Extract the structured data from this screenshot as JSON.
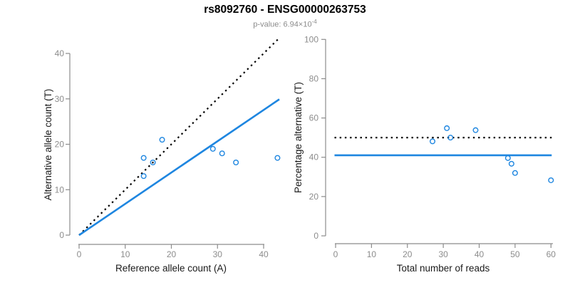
{
  "header": {
    "title": "rs8092760 - ENSG00000263753",
    "subtitle_base": "p-value: 6.94×10",
    "subtitle_exponent": "-4"
  },
  "colors": {
    "accent_blue": "#1e86e0",
    "dotted_black": "#000000",
    "axis_gray": "#8c8c8c",
    "label_black": "#1a1a1a",
    "marker_blue": "#1e86e0"
  },
  "chart_data": [
    {
      "type": "scatter",
      "name": "allele-counts-plot",
      "xlabel": "Reference allele count (A)",
      "ylabel": "Alternative allele count (T)",
      "xlim": [
        0,
        43.5
      ],
      "ylim": [
        0,
        43.5
      ],
      "xticks": [
        0,
        10,
        20,
        30,
        40
      ],
      "yticks": [
        0,
        10,
        20,
        30,
        40
      ],
      "grid": false,
      "points": [
        [
          18,
          21
        ],
        [
          29,
          19
        ],
        [
          31,
          18
        ],
        [
          43,
          17
        ],
        [
          34,
          16
        ],
        [
          14,
          17
        ],
        [
          16,
          16
        ],
        [
          14,
          13
        ]
      ],
      "lines": [
        {
          "name": "identity-line",
          "style": "dotted",
          "color": "#000000",
          "x1": 0,
          "y1": 0,
          "x2": 43.2,
          "y2": 43.2
        },
        {
          "name": "regression-line",
          "style": "solid",
          "color": "#1e86e0",
          "x1": 0,
          "y1": 0,
          "x2": 43.4,
          "y2": 29.9
        }
      ]
    },
    {
      "type": "scatter",
      "name": "percentage-vs-reads-plot",
      "xlabel": "Total number of reads",
      "ylabel": "Percentage alternative (T)",
      "xlim": [
        0,
        60.5
      ],
      "ylim": [
        0,
        100
      ],
      "xticks": [
        0,
        10,
        20,
        30,
        40,
        50,
        60
      ],
      "yticks": [
        0,
        20,
        40,
        60,
        80,
        100
      ],
      "grid": false,
      "points": [
        [
          39,
          53.8
        ],
        [
          48,
          39.6
        ],
        [
          49,
          36.7
        ],
        [
          60,
          28.3
        ],
        [
          50,
          32.0
        ],
        [
          31,
          54.8
        ],
        [
          32,
          50.0
        ],
        [
          27,
          48.1
        ]
      ],
      "lines": [
        {
          "name": "expected-50pct-line",
          "style": "dotted",
          "color": "#000000",
          "x1": -0.3,
          "y1": 50,
          "x2": 60.3,
          "y2": 50
        },
        {
          "name": "mean-percentage-line",
          "style": "solid",
          "color": "#1e86e0",
          "x1": -0.3,
          "y1": 41,
          "x2": 60.2,
          "y2": 41
        }
      ]
    }
  ]
}
